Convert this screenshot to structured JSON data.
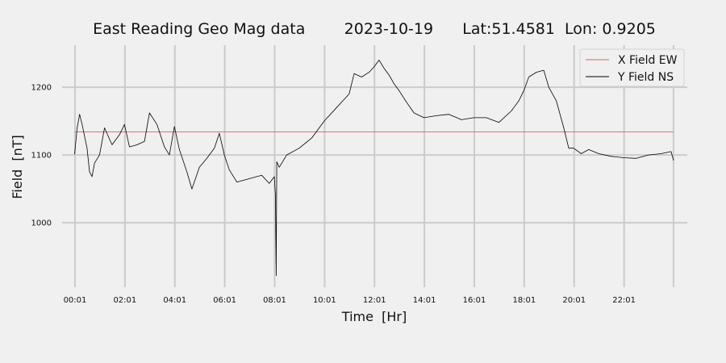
{
  "chart_data": {
    "type": "line",
    "title": "East Reading Geo Mag data        2023-10-19      Lat:51.4581  Lon: 0.9205",
    "xlabel": "Time  [Hr]",
    "ylabel": "Field  [nT]",
    "x_unit": "hours",
    "x_ticks": [
      {
        "value": 0.0167,
        "label": "00:01"
      },
      {
        "value": 2.0167,
        "label": "02:01"
      },
      {
        "value": 4.0167,
        "label": "04:01"
      },
      {
        "value": 6.0167,
        "label": "06:01"
      },
      {
        "value": 8.0167,
        "label": "08:01"
      },
      {
        "value": 10.0167,
        "label": "10:01"
      },
      {
        "value": 12.0167,
        "label": "12:01"
      },
      {
        "value": 14.0167,
        "label": "14:01"
      },
      {
        "value": 16.0167,
        "label": "16:01"
      },
      {
        "value": 18.0167,
        "label": "18:01"
      },
      {
        "value": 20.0167,
        "label": "20:01"
      },
      {
        "value": 22.0167,
        "label": "22:01"
      }
    ],
    "xlim": [
      -0.5,
      24.55
    ],
    "y_ticks": [
      1000,
      1100,
      1200
    ],
    "ylim": [
      905,
      1262
    ],
    "grid": true,
    "legend_position": "top-right",
    "series": [
      {
        "name": "X Field EW",
        "color": "#e06050",
        "x": [
          0.0,
          24.0
        ],
        "values": [
          1134,
          1134
        ]
      },
      {
        "name": "Y Field NS",
        "color": "#000000",
        "x": [
          0.0,
          0.1,
          0.2,
          0.3,
          0.5,
          0.6,
          0.7,
          0.8,
          1.0,
          1.2,
          1.5,
          1.8,
          2.0,
          2.2,
          2.5,
          2.8,
          3.0,
          3.3,
          3.6,
          3.8,
          4.0,
          4.2,
          4.5,
          4.7,
          5.0,
          5.3,
          5.6,
          5.8,
          6.0,
          6.2,
          6.5,
          7.0,
          7.5,
          7.8,
          8.0,
          8.05,
          8.08,
          8.1,
          8.2,
          8.5,
          9.0,
          9.5,
          10.0,
          10.5,
          11.0,
          11.2,
          11.5,
          11.8,
          12.0,
          12.2,
          12.4,
          12.6,
          12.8,
          13.0,
          13.3,
          13.6,
          14.0,
          14.5,
          15.0,
          15.5,
          16.0,
          16.5,
          17.0,
          17.5,
          17.8,
          18.0,
          18.2,
          18.5,
          18.8,
          19.0,
          19.3,
          19.6,
          19.8,
          20.0,
          20.3,
          20.6,
          21.0,
          21.5,
          22.0,
          22.5,
          23.0,
          23.5,
          23.9,
          24.0
        ],
        "values": [
          1101,
          1140,
          1160,
          1145,
          1110,
          1075,
          1068,
          1088,
          1100,
          1140,
          1115,
          1130,
          1145,
          1112,
          1115,
          1120,
          1162,
          1145,
          1112,
          1100,
          1142,
          1108,
          1075,
          1050,
          1082,
          1095,
          1110,
          1132,
          1100,
          1078,
          1060,
          1065,
          1070,
          1058,
          1068,
          1040,
          922,
          1090,
          1082,
          1100,
          1110,
          1125,
          1150,
          1170,
          1190,
          1220,
          1215,
          1222,
          1230,
          1240,
          1228,
          1218,
          1205,
          1195,
          1178,
          1162,
          1155,
          1158,
          1160,
          1152,
          1155,
          1155,
          1148,
          1165,
          1180,
          1195,
          1215,
          1222,
          1225,
          1200,
          1180,
          1140,
          1110,
          1110,
          1102,
          1108,
          1102,
          1098,
          1096,
          1095,
          1100,
          1102,
          1105,
          1092
        ]
      }
    ]
  }
}
